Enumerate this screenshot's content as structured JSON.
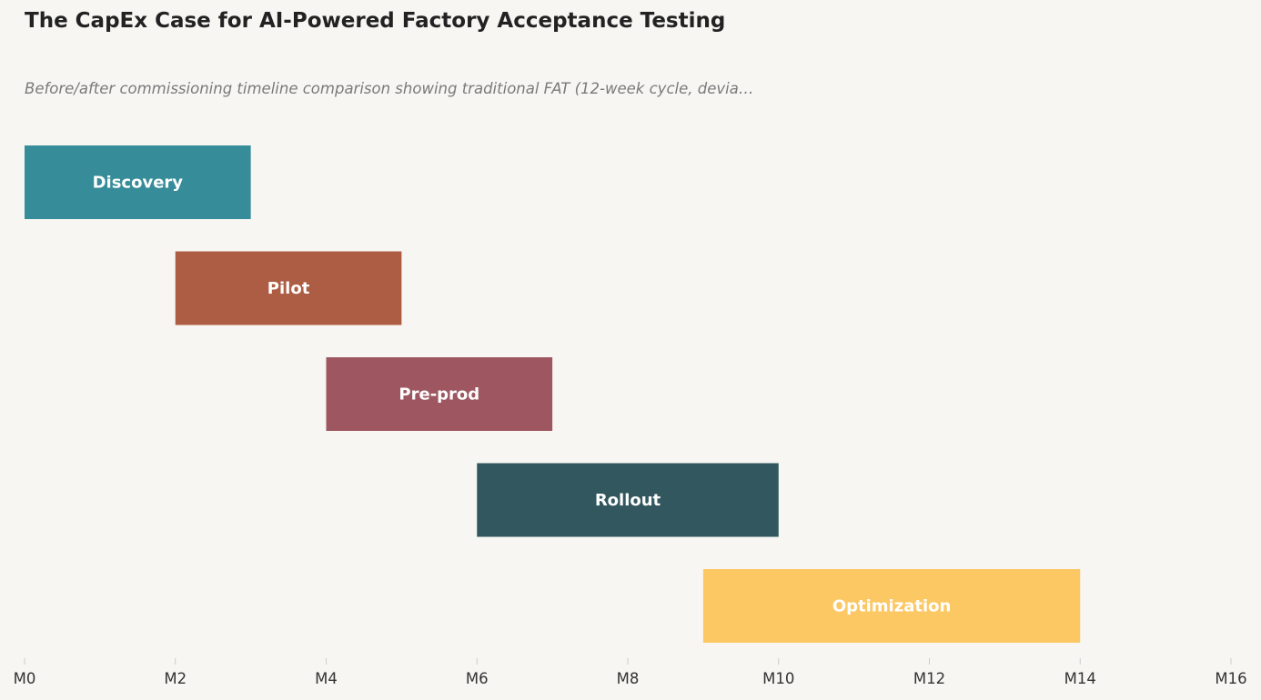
{
  "title": "The CapEx Case for AI-Powered Factory Acceptance Testing",
  "subtitle": "Before/after commissioning timeline comparison showing traditional FAT (12-week cycle, devia…",
  "chart_data": {
    "type": "bar",
    "orientation": "horizontal-gantt",
    "title": "The CapEx Case for AI-Powered Factory Acceptance Testing",
    "subtitle": "Before/after commissioning timeline comparison showing traditional FAT (12-week cycle, devia…",
    "xlabel": "",
    "ylabel": "",
    "xlim": [
      0,
      16
    ],
    "grid": false,
    "legend": "none",
    "x_ticks": [
      "M0",
      "M2",
      "M4",
      "M6",
      "M8",
      "M10",
      "M12",
      "M14",
      "M16"
    ],
    "x_tick_values": [
      0,
      2,
      4,
      6,
      8,
      10,
      12,
      14,
      16
    ],
    "tasks": [
      {
        "name": "Discovery",
        "start": 0,
        "end": 3,
        "color": "#368c98"
      },
      {
        "name": "Pilot",
        "start": 2,
        "end": 5,
        "color": "#ad5d43"
      },
      {
        "name": "Pre-prod",
        "start": 4,
        "end": 7,
        "color": "#9e5761"
      },
      {
        "name": "Rollout",
        "start": 6,
        "end": 10,
        "color": "#32575e"
      },
      {
        "name": "Optimization",
        "start": 9,
        "end": 14,
        "color": "#fcc864"
      }
    ]
  }
}
